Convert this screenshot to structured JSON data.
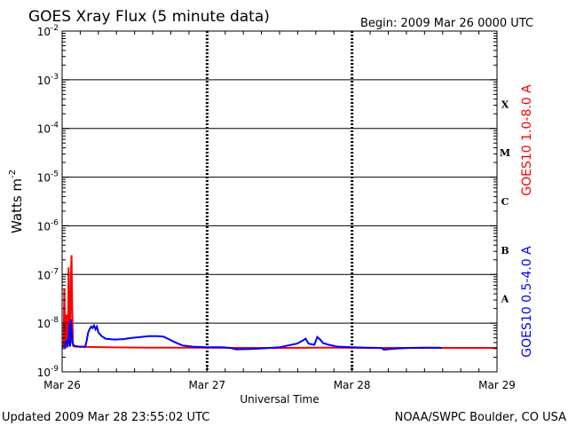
{
  "chart_data": {
    "type": "line",
    "title": "GOES Xray Flux (5 minute data)",
    "begin_label": "Begin:  2009 Mar 26 0000 UTC",
    "xlabel": "Universal Time",
    "ylabel_main": "Watts m",
    "ylabel_sup": "-2",
    "x_unit": "day",
    "x_ticks": [
      "Mar 26",
      "Mar 27",
      "Mar 28",
      "Mar 29"
    ],
    "x_range": [
      0,
      3
    ],
    "y_scale": "log",
    "ylim": [
      1e-09,
      0.01
    ],
    "y_ticks": [
      {
        "value": 0.01,
        "base": "10",
        "exp": "-2"
      },
      {
        "value": 0.001,
        "base": "10",
        "exp": "-3"
      },
      {
        "value": 0.0001,
        "base": "10",
        "exp": "-4"
      },
      {
        "value": 1e-05,
        "base": "10",
        "exp": "-5"
      },
      {
        "value": 1e-06,
        "base": "10",
        "exp": "-6"
      },
      {
        "value": 1e-07,
        "base": "10",
        "exp": "-7"
      },
      {
        "value": 1e-08,
        "base": "10",
        "exp": "-8"
      },
      {
        "value": 1e-09,
        "base": "10",
        "exp": "-9"
      }
    ],
    "flare_classes": [
      {
        "label": "X",
        "value": 0.000316
      },
      {
        "label": "M",
        "value": 3.16e-05
      },
      {
        "label": "C",
        "value": 3.16e-06
      },
      {
        "label": "B",
        "value": 3.16e-07
      },
      {
        "label": "A",
        "value": 3.16e-08
      }
    ],
    "grid": "horizontal lines at each decade from 1e-8 to 1e-3; dashed vertical lines at day boundaries",
    "series": [
      {
        "name": "GOES10 1.0-8.0 A",
        "color": "#ff0000",
        "points": [
          [
            0.0,
            3.2e-09
          ],
          [
            0.01,
            3.3e-09
          ],
          [
            0.015,
            5e-08
          ],
          [
            0.022,
            3.5e-09
          ],
          [
            0.03,
            1.5e-08
          ],
          [
            0.035,
            3.3e-09
          ],
          [
            0.04,
            3.4e-09
          ],
          [
            0.045,
            1.4e-07
          ],
          [
            0.05,
            6e-09
          ],
          [
            0.055,
            3.5e-09
          ],
          [
            0.06,
            8e-08
          ],
          [
            0.065,
            2.5e-07
          ],
          [
            0.07,
            2e-08
          ],
          [
            0.075,
            3.4e-09
          ],
          [
            0.09,
            3.3e-09
          ],
          [
            0.3,
            3.2e-09
          ],
          [
            0.6,
            3.15e-09
          ],
          [
            0.9,
            3.15e-09
          ],
          [
            1.2,
            3.1e-09
          ],
          [
            1.5,
            3.1e-09
          ],
          [
            1.8,
            3.15e-09
          ],
          [
            2.1,
            3.1e-09
          ],
          [
            2.4,
            3.1e-09
          ],
          [
            2.7,
            3.1e-09
          ],
          [
            3.0,
            3.1e-09
          ]
        ]
      },
      {
        "name": "GOES10 0.5-4.0 A",
        "color": "#0000ff",
        "points": [
          [
            0.0,
            3.5e-09
          ],
          [
            0.02,
            3.2e-09
          ],
          [
            0.03,
            4.5e-09
          ],
          [
            0.04,
            3.3e-09
          ],
          [
            0.05,
            1e-08
          ],
          [
            0.055,
            3.3e-09
          ],
          [
            0.06,
            1.2e-08
          ],
          [
            0.07,
            4e-09
          ],
          [
            0.08,
            3.5e-09
          ],
          [
            0.09,
            3.4e-09
          ],
          [
            0.12,
            3.3e-09
          ],
          [
            0.16,
            3.3e-09
          ],
          [
            0.17,
            4.5e-09
          ],
          [
            0.18,
            6.5e-09
          ],
          [
            0.19,
            7.5e-09
          ],
          [
            0.2,
            8.5e-09
          ],
          [
            0.21,
            8e-09
          ],
          [
            0.22,
            9e-09
          ],
          [
            0.23,
            7.5e-09
          ],
          [
            0.24,
            8.5e-09
          ],
          [
            0.25,
            6.5e-09
          ],
          [
            0.27,
            5.5e-09
          ],
          [
            0.3,
            4.8e-09
          ],
          [
            0.36,
            4.6e-09
          ],
          [
            0.42,
            4.7e-09
          ],
          [
            0.48,
            5e-09
          ],
          [
            0.54,
            5.2e-09
          ],
          [
            0.6,
            5.4e-09
          ],
          [
            0.66,
            5.4e-09
          ],
          [
            0.7,
            5.3e-09
          ],
          [
            0.73,
            4.8e-09
          ],
          [
            0.76,
            4.3e-09
          ],
          [
            0.8,
            3.8e-09
          ],
          [
            0.83,
            3.5e-09
          ],
          [
            0.9,
            3.3e-09
          ],
          [
            1.0,
            3.2e-09
          ],
          [
            1.1,
            3.2e-09
          ],
          [
            1.16,
            3.1e-09
          ],
          [
            1.2,
            2.9e-09
          ],
          [
            1.3,
            2.95e-09
          ],
          [
            1.4,
            3.05e-09
          ],
          [
            1.5,
            3.2e-09
          ],
          [
            1.56,
            3.5e-09
          ],
          [
            1.62,
            3.8e-09
          ],
          [
            1.66,
            4.4e-09
          ],
          [
            1.68,
            4.8e-09
          ],
          [
            1.7,
            3.8e-09
          ],
          [
            1.74,
            3.6e-09
          ],
          [
            1.76,
            5.2e-09
          ],
          [
            1.78,
            4.6e-09
          ],
          [
            1.8,
            3.9e-09
          ],
          [
            1.84,
            3.6e-09
          ],
          [
            1.9,
            3.3e-09
          ],
          [
            2.0,
            3.2e-09
          ],
          [
            2.1,
            3.15e-09
          ],
          [
            2.2,
            3.1e-09
          ],
          [
            2.22,
            2.85e-09
          ],
          [
            2.3,
            3e-09
          ],
          [
            2.4,
            3.1e-09
          ],
          [
            2.5,
            3.15e-09
          ],
          [
            2.6,
            3.15e-09
          ],
          [
            2.62,
            3.05e-09
          ]
        ]
      }
    ]
  },
  "footer": {
    "updated": "Updated 2009 Mar 28 23:55:02 UTC",
    "credit": "NOAA/SWPC Boulder, CO USA"
  }
}
